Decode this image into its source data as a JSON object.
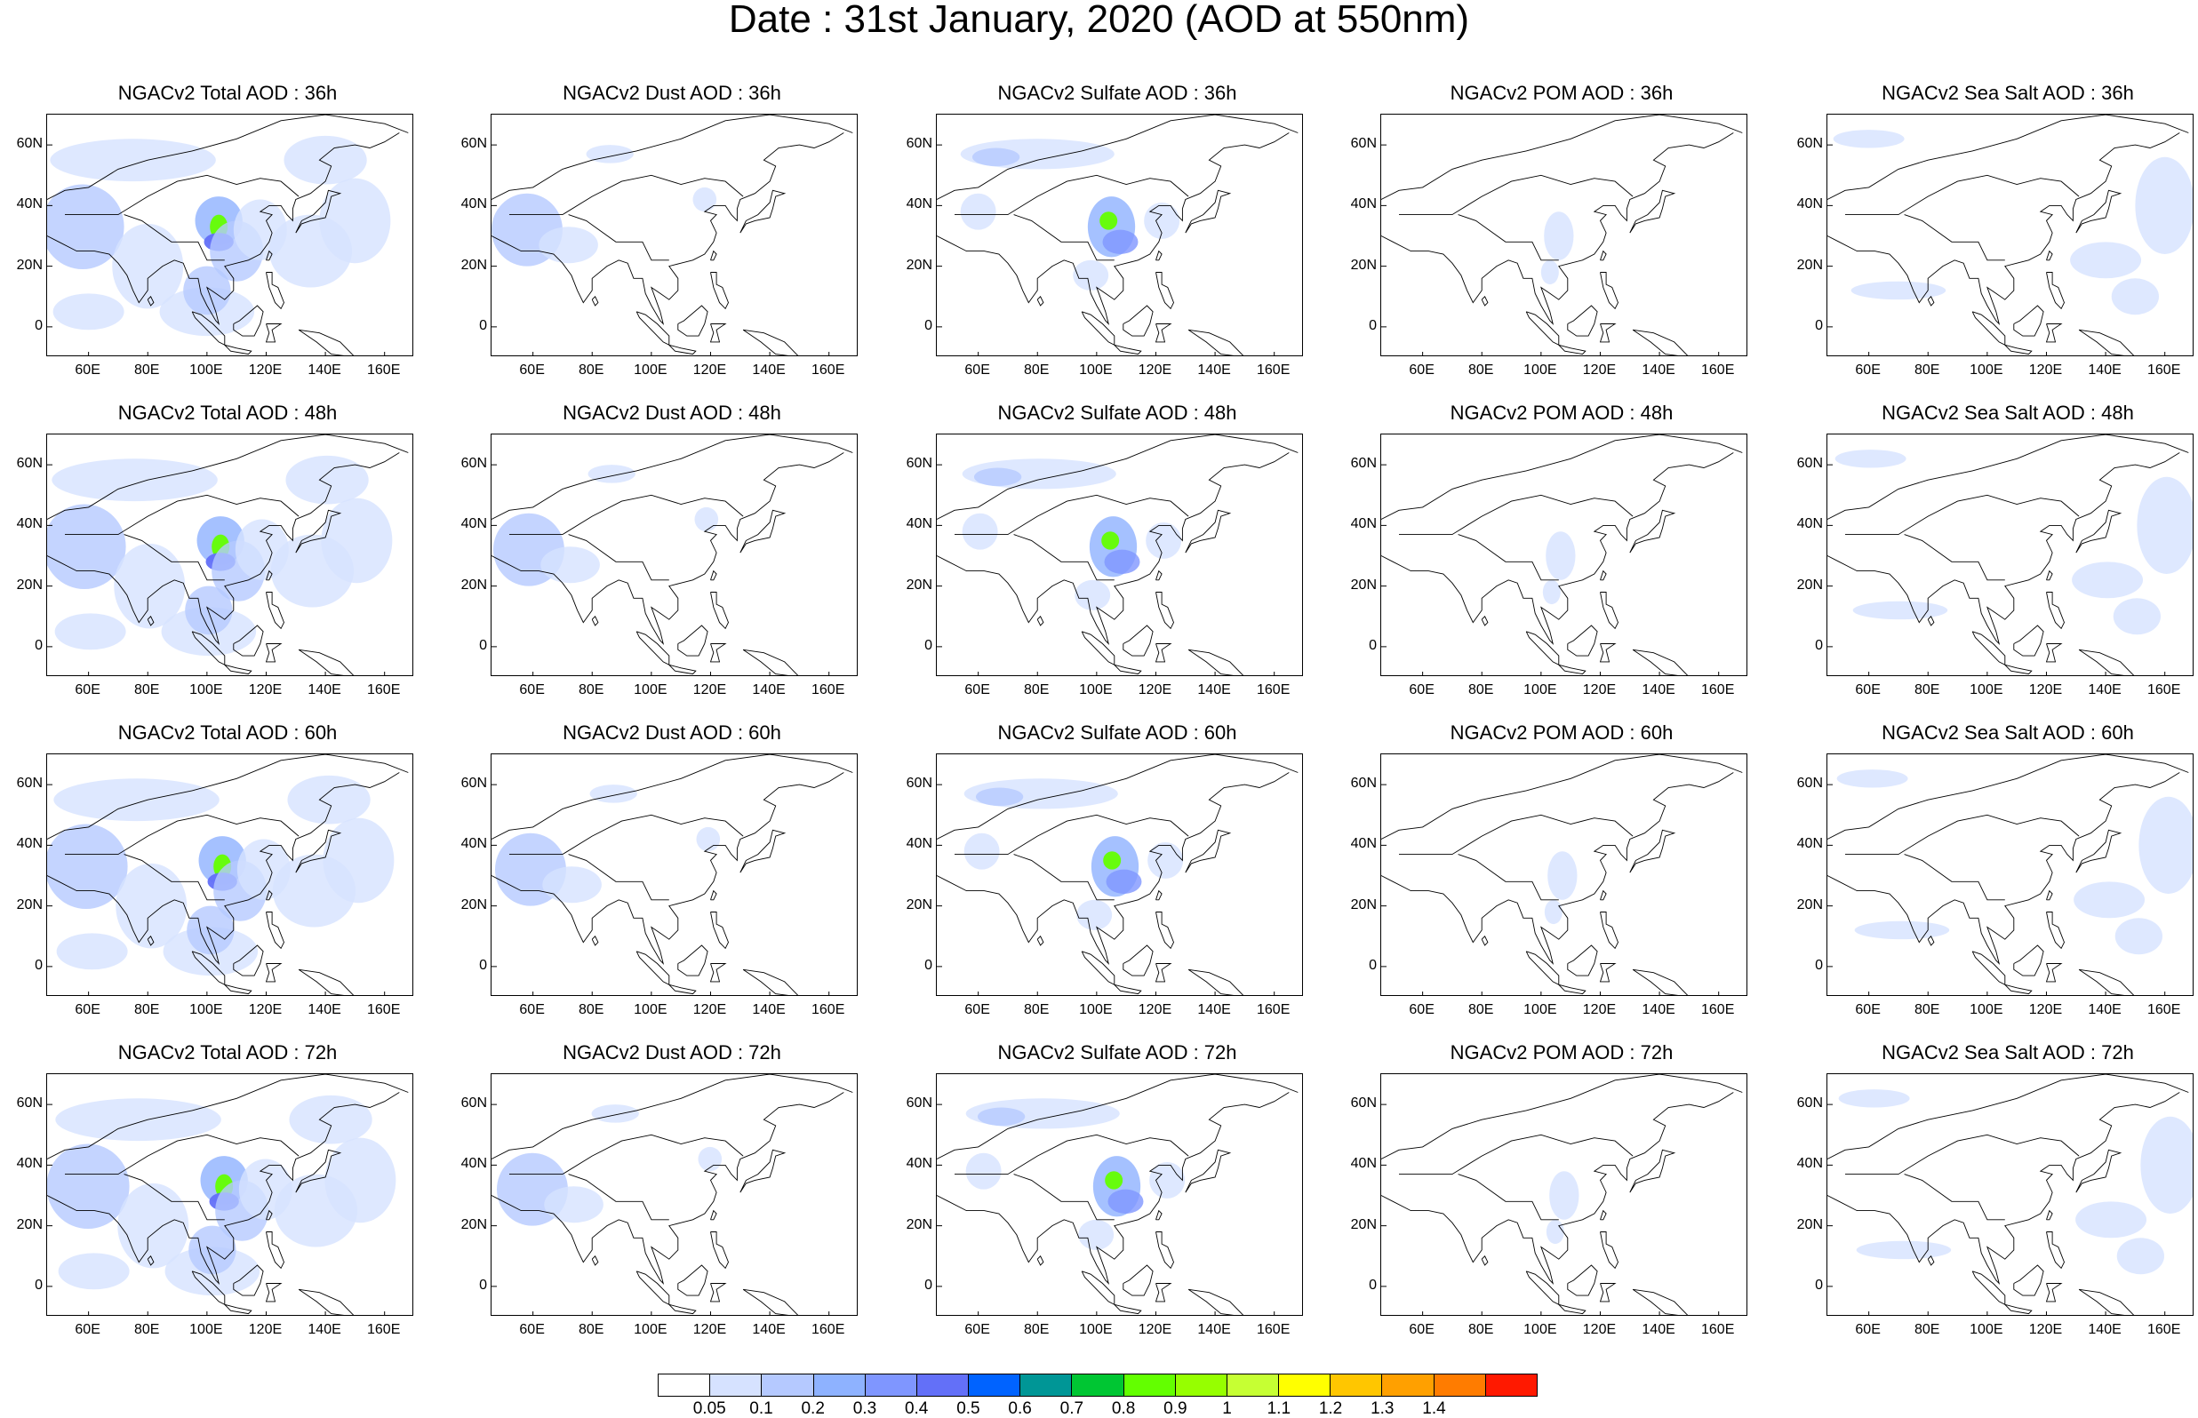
{
  "figure_title": "Date : 31st January, 2020 (AOD at 550nm)",
  "lat_ticks": [
    "60N",
    "40N",
    "20N",
    "0"
  ],
  "lon_ticks": [
    "60E",
    "80E",
    "100E",
    "120E",
    "140E",
    "160E"
  ],
  "panels": [
    {
      "title": "NGACv2 Total AOD : 36h",
      "species": "total",
      "hour": "36h"
    },
    {
      "title": "NGACv2 Dust AOD : 36h",
      "species": "dust",
      "hour": "36h"
    },
    {
      "title": "NGACv2 Sulfate AOD : 36h",
      "species": "sulfate",
      "hour": "36h"
    },
    {
      "title": "NGACv2 POM AOD : 36h",
      "species": "pom",
      "hour": "36h"
    },
    {
      "title": "NGACv2 Sea Salt AOD : 36h",
      "species": "seasalt",
      "hour": "36h"
    },
    {
      "title": "NGACv2 Total AOD : 48h",
      "species": "total",
      "hour": "48h"
    },
    {
      "title": "NGACv2 Dust AOD : 48h",
      "species": "dust",
      "hour": "48h"
    },
    {
      "title": "NGACv2 Sulfate AOD : 48h",
      "species": "sulfate",
      "hour": "48h"
    },
    {
      "title": "NGACv2 POM AOD : 48h",
      "species": "pom",
      "hour": "48h"
    },
    {
      "title": "NGACv2 Sea Salt AOD : 48h",
      "species": "seasalt",
      "hour": "48h"
    },
    {
      "title": "NGACv2 Total AOD : 60h",
      "species": "total",
      "hour": "60h"
    },
    {
      "title": "NGACv2 Dust AOD : 60h",
      "species": "dust",
      "hour": "60h"
    },
    {
      "title": "NGACv2 Sulfate AOD : 60h",
      "species": "sulfate",
      "hour": "60h"
    },
    {
      "title": "NGACv2 POM AOD : 60h",
      "species": "pom",
      "hour": "60h"
    },
    {
      "title": "NGACv2 Sea Salt AOD : 60h",
      "species": "seasalt",
      "hour": "60h"
    },
    {
      "title": "NGACv2 Total AOD : 72h",
      "species": "total",
      "hour": "72h"
    },
    {
      "title": "NGACv2 Dust AOD : 72h",
      "species": "dust",
      "hour": "72h"
    },
    {
      "title": "NGACv2 Sulfate AOD : 72h",
      "species": "sulfate",
      "hour": "72h"
    },
    {
      "title": "NGACv2 POM AOD : 72h",
      "species": "pom",
      "hour": "72h"
    },
    {
      "title": "NGACv2 Sea Salt  AOD : 72h",
      "species": "seasalt",
      "hour": "72h"
    }
  ],
  "colorbar": {
    "labels": [
      "0.05",
      "0.1",
      "0.2",
      "0.3",
      "0.4",
      "0.5",
      "0.6",
      "0.7",
      "0.8",
      "0.9",
      "1",
      "1.1",
      "1.2",
      "1.3",
      "1.4"
    ],
    "colors": [
      "#ffffff",
      "#d6e2ff",
      "#b5c9ff",
      "#8eb2ff",
      "#7f96ff",
      "#6370f8",
      "#0063ff",
      "#009696",
      "#00c633",
      "#63ff00",
      "#96ff00",
      "#c6ff33",
      "#ffff00",
      "#ffc600",
      "#ffa000",
      "#ff7c00",
      "#ff1900"
    ]
  }
}
